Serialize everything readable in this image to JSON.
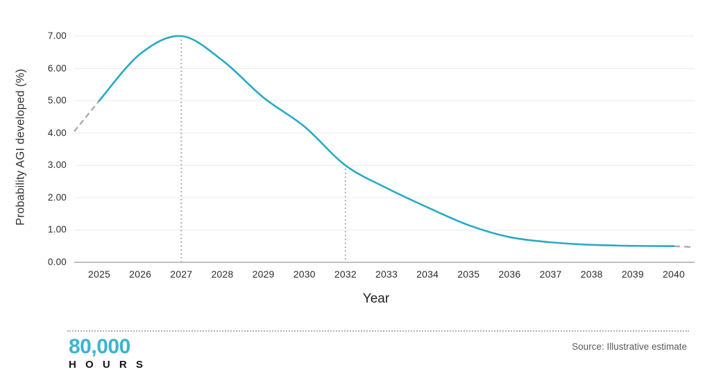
{
  "chart_data": {
    "type": "line",
    "title": "",
    "xlabel": "Year",
    "ylabel": "Probability AGI developed (%)",
    "x_tick_labels": [
      "2025",
      "2026",
      "2027",
      "2028",
      "2029",
      "2030",
      "2032",
      "2033",
      "2034",
      "2035",
      "2036",
      "2037",
      "2038",
      "2039",
      "2040"
    ],
    "y_tick_labels": [
      "0.00",
      "1.00",
      "2.00",
      "3.00",
      "4.00",
      "5.00",
      "6.00",
      "7.00"
    ],
    "ylim": [
      0,
      7
    ],
    "grid": "horizontal",
    "legend": "none",
    "series": [
      {
        "name": "Probability AGI developed (%)",
        "color": "#26a9c5",
        "points": [
          {
            "x": "2025",
            "y": 5.0
          },
          {
            "x": "2026",
            "y": 6.45
          },
          {
            "x": "2027",
            "y": 7.0
          },
          {
            "x": "2028",
            "y": 6.25
          },
          {
            "x": "2029",
            "y": 5.1
          },
          {
            "x": "2030",
            "y": 4.2
          },
          {
            "x": "2032",
            "y": 3.0
          },
          {
            "x": "2033",
            "y": 2.3
          },
          {
            "x": "2034",
            "y": 1.7
          },
          {
            "x": "2035",
            "y": 1.15
          },
          {
            "x": "2036",
            "y": 0.78
          },
          {
            "x": "2037",
            "y": 0.62
          },
          {
            "x": "2038",
            "y": 0.54
          },
          {
            "x": "2039",
            "y": 0.51
          },
          {
            "x": "2040",
            "y": 0.5
          }
        ]
      }
    ],
    "lead_in_dashed": {
      "from_x_offset": -0.61,
      "from_y": 4.05,
      "to_x": "2025",
      "to_y": 5.0
    },
    "tail_dashed": {
      "from_x": "2040",
      "from_y": 0.5,
      "to_x_offset": 14.48,
      "to_y": 0.47
    },
    "annotations": [
      {
        "type": "vline_dotted",
        "x": "2027",
        "y_top": 7.0,
        "y_bottom": 0
      },
      {
        "type": "vline_dotted",
        "x": "2032",
        "y_top": 3.0,
        "y_bottom": 0
      }
    ]
  },
  "footer": {
    "logo_top": "80,000",
    "logo_bottom": "H O U R S",
    "source": "Source: Illustrative estimate"
  },
  "colors": {
    "curve": "#26a9c5",
    "logo": "#3bb4d1",
    "grid": "#eaeaea",
    "axis": "#999999",
    "dashed": "#ababab",
    "dotted": "#9b9b9b",
    "tick_text": "#2b2b2b"
  }
}
